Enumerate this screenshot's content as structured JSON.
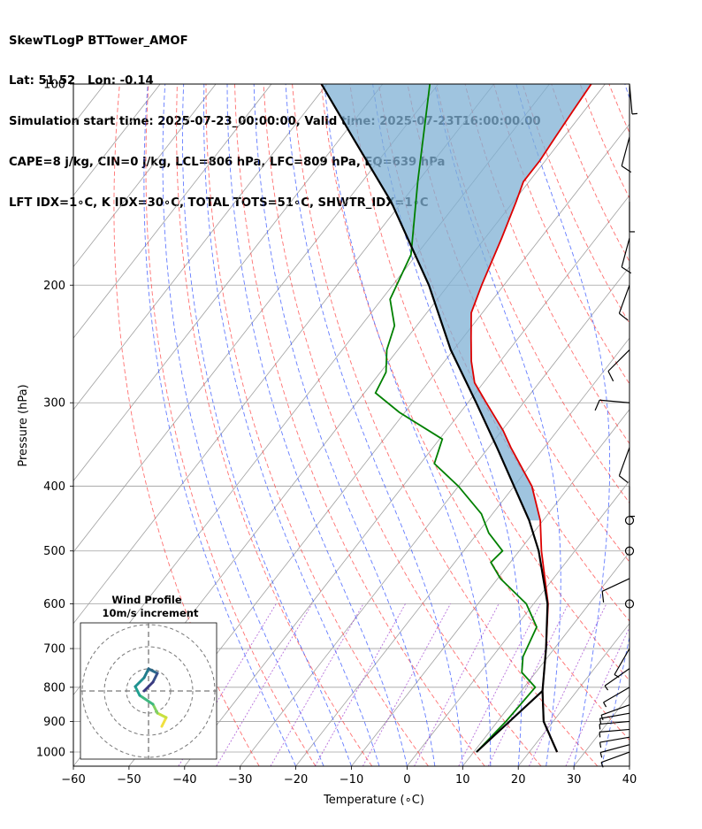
{
  "header": {
    "title_line1": "SkewTLogP BTTower_AMOF",
    "title_line2": "Lat: 51.52   Lon: -0.14",
    "title_line3": "Simulation start time: 2025-07-23_00:00:00, Valid time: 2025-07-23T16:00:00.00",
    "title_line4": "CAPE=8 j/kg, CIN=0 j/kg, LCL=806 hPa, LFC=809 hPa, EQ=639 hPa",
    "title_line5": "LFT IDX=1∘C, K IDX=30∘C, TOTAL TOTS=51∘C, SHWTR_IDX=1∘C"
  },
  "colors": {
    "temperature": "#dd0000",
    "dewpoint": "#008000",
    "parcel": "#000000",
    "cape_fill": "#7fb0d4",
    "dry_adiabat": "#ff4040",
    "moist_adiabat": "#3050ff",
    "mixing_ratio": "#9933cc",
    "isotherm": "#a0a0a0"
  },
  "chart_data": {
    "type": "line",
    "title": "SkewTLogP BTTower_AMOF",
    "xlabel": "Temperature (∘C)",
    "ylabel": "Pressure (hPa)",
    "xlim": [
      -60,
      40
    ],
    "ylim": [
      1050,
      100
    ],
    "x_ticks": [
      "−60",
      "−50",
      "−40",
      "−30",
      "−20",
      "−10",
      "0",
      "10",
      "20",
      "30",
      "40"
    ],
    "y_ticks": [
      100,
      200,
      300,
      400,
      500,
      600,
      700,
      800,
      900,
      1000
    ],
    "y_tick_labels": [
      "100",
      "200",
      "300",
      "400",
      "500",
      "600",
      "700",
      "800",
      "900",
      "1000"
    ],
    "grid": true,
    "series": [
      {
        "name": "Temperature",
        "color": "#dd0000",
        "pressure": [
          1000,
          900,
          810,
          700,
          600,
          500,
          450,
          400,
          350,
          330,
          300,
          280,
          260,
          240,
          220,
          200,
          170,
          150,
          140,
          130,
          120,
          110,
          100
        ],
        "temp": [
          25.0,
          18.3,
          13.8,
          8.5,
          2.6,
          -6.0,
          -10.5,
          -16.8,
          -26.0,
          -29.8,
          -36.7,
          -41.6,
          -45.2,
          -48.5,
          -52.0,
          -54.0,
          -57.0,
          -59.5,
          -61.0,
          -61.0,
          -61.5,
          -62.0,
          -62.5
        ]
      },
      {
        "name": "Dewpoint",
        "color": "#008000",
        "pressure": [
          1000,
          900,
          800,
          760,
          720,
          650,
          600,
          550,
          520,
          500,
          470,
          440,
          400,
          370,
          340,
          310,
          290,
          270,
          250,
          230,
          210,
          180,
          140,
          100
        ],
        "temp": [
          10.5,
          11.5,
          12.0,
          7.5,
          5.5,
          3.8,
          -1.3,
          -9.5,
          -13.5,
          -13.0,
          -18.0,
          -22.0,
          -30.0,
          -37.5,
          -39.5,
          -51.0,
          -58.0,
          -59.0,
          -62.0,
          -64.0,
          -68.5,
          -71.0,
          -80.0,
          -91.5
        ]
      },
      {
        "name": "Parcel",
        "color": "#000000",
        "pressure": [
          1000,
          900,
          810,
          700,
          600,
          500,
          450,
          400,
          350,
          300,
          250,
          200,
          150,
          120,
          100
        ],
        "temp": [
          25.0,
          18.3,
          13.8,
          8.5,
          2.5,
          -6.5,
          -12.5,
          -20.0,
          -28.5,
          -38.5,
          -50.5,
          -63.5,
          -82.0,
          -98.0,
          -111.0
        ]
      },
      {
        "name": "Parcel dewpoint",
        "color": "#000000",
        "pressure": [
          1000,
          810
        ],
        "temp": [
          10.5,
          13.8
        ]
      }
    ],
    "wind_barbs": [
      {
        "pressure": 1000,
        "speed_kt": 6,
        "dir_deg": 250
      },
      {
        "pressure": 975,
        "speed_kt": 6,
        "dir_deg": 255
      },
      {
        "pressure": 950,
        "speed_kt": 7,
        "dir_deg": 260
      },
      {
        "pressure": 925,
        "speed_kt": 7,
        "dir_deg": 265
      },
      {
        "pressure": 900,
        "speed_kt": 6,
        "dir_deg": 265
      },
      {
        "pressure": 875,
        "speed_kt": 6,
        "dir_deg": 260
      },
      {
        "pressure": 850,
        "speed_kt": 6,
        "dir_deg": 250
      },
      {
        "pressure": 800,
        "speed_kt": 7,
        "dir_deg": 240
      },
      {
        "pressure": 750,
        "speed_kt": 9,
        "dir_deg": 235
      },
      {
        "pressure": 700,
        "speed_kt": 9,
        "dir_deg": 210
      },
      {
        "pressure": 600,
        "speed_kt": 0,
        "dir_deg": 0
      },
      {
        "pressure": 550,
        "speed_kt": 12,
        "dir_deg": 245
      },
      {
        "pressure": 500,
        "speed_kt": 0,
        "dir_deg": 0
      },
      {
        "pressure": 450,
        "speed_kt": 0,
        "dir_deg": 0
      },
      {
        "pressure": 400,
        "speed_kt": 6,
        "dir_deg": 180
      },
      {
        "pressure": 350,
        "speed_kt": 12,
        "dir_deg": 200
      },
      {
        "pressure": 300,
        "speed_kt": 12,
        "dir_deg": 275
      },
      {
        "pressure": 250,
        "speed_kt": 12,
        "dir_deg": 225
      },
      {
        "pressure": 200,
        "speed_kt": 12,
        "dir_deg": 200
      },
      {
        "pressure": 170,
        "speed_kt": 12,
        "dir_deg": 195
      },
      {
        "pressure": 150,
        "speed_kt": 7,
        "dir_deg": 180
      },
      {
        "pressure": 120,
        "speed_kt": 12,
        "dir_deg": 195
      },
      {
        "pressure": 100,
        "speed_kt": 7,
        "dir_deg": 175
      }
    ],
    "inset": {
      "title_line1": "Wind Profile",
      "title_line2": "10m/s increment",
      "hodograph_u": [
        3,
        4,
        2,
        1,
        -2,
        -3,
        -1,
        0,
        2,
        1,
        -1
      ],
      "hodograph_v": [
        -8,
        -6,
        -5,
        -3,
        -1,
        1,
        3,
        5,
        4,
        2,
        0
      ]
    }
  }
}
